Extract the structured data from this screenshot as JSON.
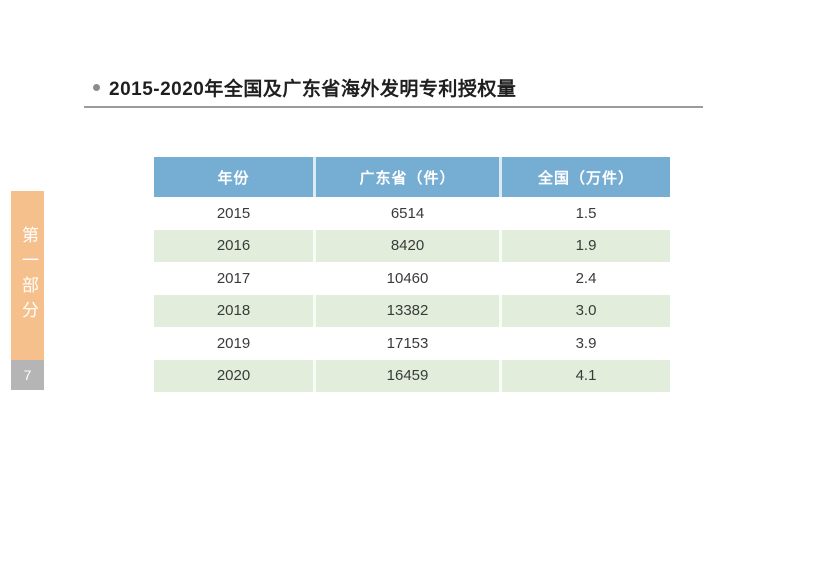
{
  "page": {
    "number": "7",
    "background": "#FFFFFF"
  },
  "sidebar": {
    "section_label": "第一部分",
    "tab_color": "#F5C08C",
    "page_box_color": "#B5B5B5"
  },
  "title": {
    "text": "2015-2020年全国及广东省海外发明专利授权量"
  },
  "table": {
    "headers": [
      "年份",
      "广东省（件）",
      "全国（万件）"
    ],
    "rows": [
      [
        "2015",
        "6514",
        "1.5"
      ],
      [
        "2016",
        "8420",
        "1.9"
      ],
      [
        "2017",
        "10460",
        "2.4"
      ],
      [
        "2018",
        "13382",
        "3.0"
      ],
      [
        "2019",
        "17153",
        "3.9"
      ],
      [
        "2020",
        "16459",
        "4.1"
      ]
    ],
    "header_bg": "#75ADD3",
    "alt_row_bg": "#E2EEDB"
  },
  "chart_data": {
    "type": "table",
    "title": "2015-2020年全国及广东省海外发明专利授权量",
    "categories": [
      "2015",
      "2016",
      "2017",
      "2018",
      "2019",
      "2020"
    ],
    "series": [
      {
        "name": "广东省（件）",
        "values": [
          6514,
          8420,
          10460,
          13382,
          17153,
          16459
        ]
      },
      {
        "name": "全国（万件）",
        "values": [
          1.5,
          1.9,
          2.4,
          3.0,
          3.9,
          4.1
        ]
      }
    ]
  }
}
